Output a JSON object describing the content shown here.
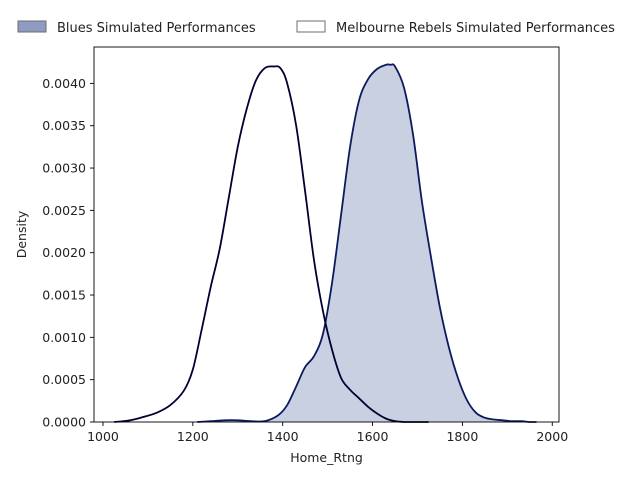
{
  "chart_data": {
    "type": "area",
    "xlabel": "Home_Rtng",
    "ylabel": "Density",
    "xlim": [
      980,
      2015
    ],
    "ylim": [
      0,
      0.00443
    ],
    "x_ticks": [
      1000,
      1200,
      1400,
      1600,
      1800,
      2000
    ],
    "x_tick_labels": [
      "1000",
      "1200",
      "1400",
      "1600",
      "1800",
      "2000"
    ],
    "y_ticks": [
      0,
      0.0005,
      0.001,
      0.0015,
      0.002,
      0.0025,
      0.003,
      0.0035,
      0.004
    ],
    "y_tick_labels": [
      "0.0000",
      "0.0005",
      "0.0010",
      "0.0015",
      "0.0020",
      "0.0025",
      "0.0030",
      "0.0035",
      "0.0040"
    ],
    "grid": false,
    "legend_position": "top",
    "series": [
      {
        "name": "Blues Simulated Performances",
        "fill_color": "#c8d0e2",
        "legend_fill_color": "#8e9cc4",
        "line_color": "#0c1a5e",
        "filled": true,
        "x": [
          1210,
          1240,
          1270,
          1300,
          1330,
          1360,
          1390,
          1410,
          1430,
          1450,
          1470,
          1490,
          1510,
          1530,
          1550,
          1570,
          1590,
          1610,
          1630,
          1640,
          1650,
          1670,
          1690,
          1710,
          1730,
          1750,
          1770,
          1790,
          1810,
          1830,
          1850,
          1870,
          1890,
          1910,
          1930,
          1950,
          1965
        ],
        "y": [
          0.0,
          1e-05,
          2e-05,
          2e-05,
          1e-05,
          1e-05,
          8e-05,
          0.0002,
          0.00042,
          0.00065,
          0.00078,
          0.00105,
          0.00165,
          0.00245,
          0.00325,
          0.0038,
          0.00405,
          0.00417,
          0.00422,
          0.00422,
          0.0042,
          0.00395,
          0.0034,
          0.0026,
          0.00195,
          0.00135,
          0.00088,
          0.00052,
          0.00026,
          0.00011,
          5e-05,
          3e-05,
          2e-05,
          1e-05,
          1e-05,
          0.0,
          0.0
        ]
      },
      {
        "name": "Melbourne Rebels Simulated Performances",
        "fill_color": "none",
        "legend_fill_color": "#ffffff",
        "line_color": "#000033",
        "filled": false,
        "x": [
          1025,
          1060,
          1090,
          1120,
          1150,
          1180,
          1200,
          1220,
          1240,
          1260,
          1280,
          1300,
          1320,
          1340,
          1360,
          1380,
          1395,
          1410,
          1430,
          1450,
          1470,
          1490,
          1510,
          1530,
          1550,
          1570,
          1590,
          1610,
          1630,
          1650,
          1670,
          1690,
          1710,
          1725
        ],
        "y": [
          0.0,
          2e-05,
          6e-05,
          0.00011,
          0.0002,
          0.00037,
          0.00062,
          0.0011,
          0.0016,
          0.00205,
          0.00265,
          0.00325,
          0.0037,
          0.00403,
          0.00418,
          0.0042,
          0.00418,
          0.004,
          0.0035,
          0.00272,
          0.0019,
          0.0013,
          0.00085,
          0.00052,
          0.00038,
          0.00028,
          0.00018,
          0.0001,
          4e-05,
          1e-05,
          0.0,
          0.0,
          0.0,
          0.0
        ]
      }
    ]
  }
}
